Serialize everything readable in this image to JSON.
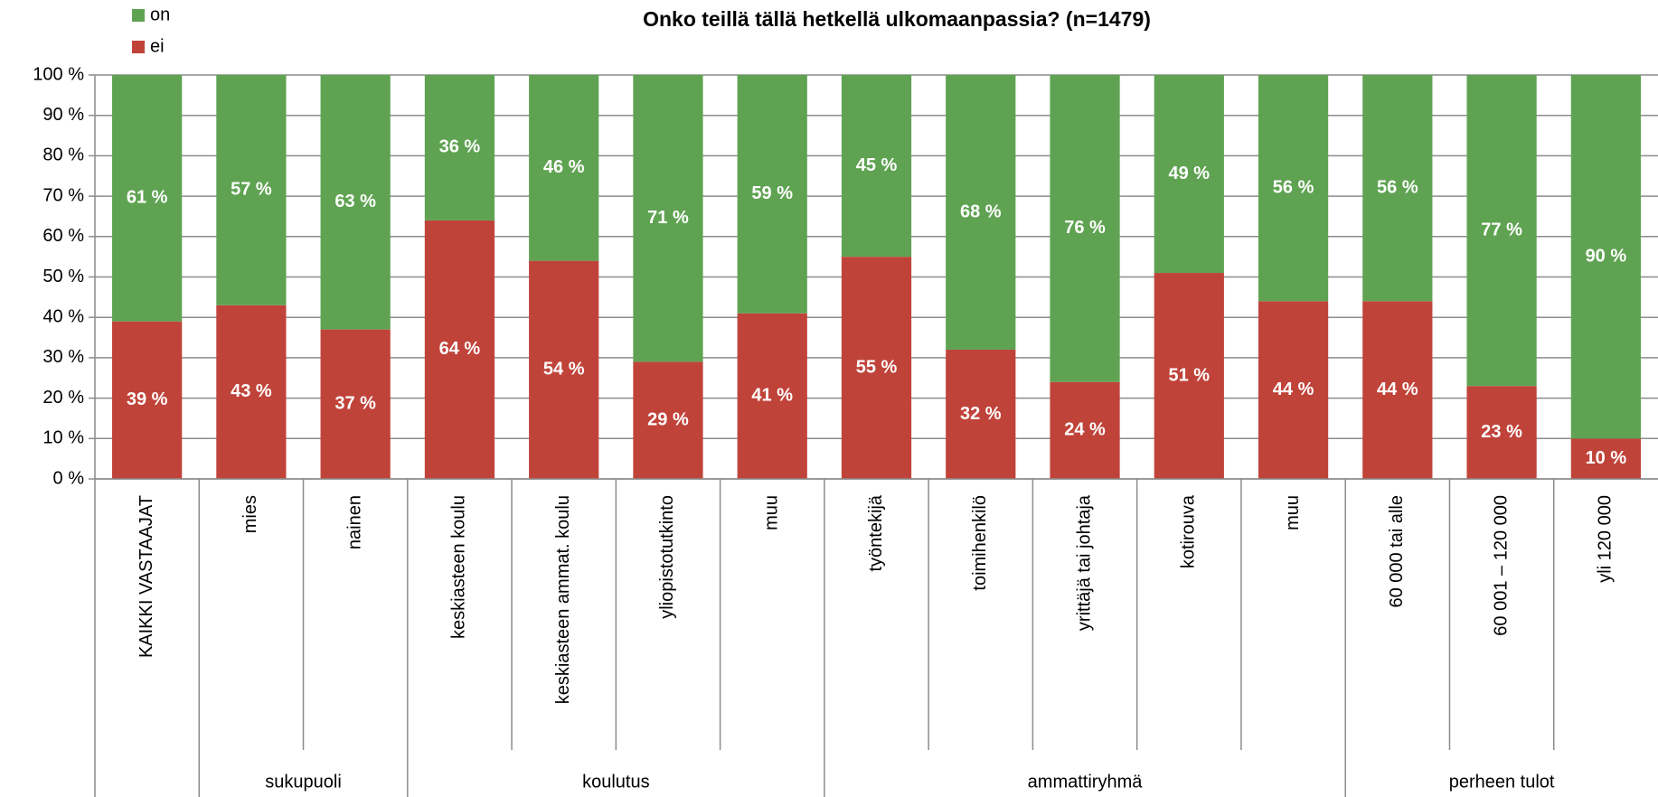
{
  "chart_data": {
    "type": "stacked_bar",
    "title": "Onko teillä tällä hetkellä ulkomaanpassia? (n=1479)",
    "categories": [
      "KAIKKI VASTAAJAT",
      "mies",
      "nainen",
      "keskiasteen koulu",
      "keskiasteen ammat. koulu",
      "yliopistotutkinto",
      "muu",
      "työntekijä",
      "toimihenkilö",
      "yrittäjä tai johtaja",
      "kotirouva",
      "muu",
      "60 000 tai alle",
      "60 001 – 120 000",
      "yli 120 000"
    ],
    "groups": [
      null,
      "sukupuoli",
      "sukupuoli",
      "koulutus",
      "koulutus",
      "koulutus",
      "koulutus",
      "ammattiryhmä",
      "ammattiryhmä",
      "ammattiryhmä",
      "ammattiryhmä",
      "ammattiryhmä",
      "perheen tulot",
      "perheen tulot",
      "perheen tulot"
    ],
    "series": [
      {
        "name": "ei",
        "color": "#c0433a",
        "values": [
          39,
          43,
          37,
          64,
          54,
          29,
          41,
          55,
          32,
          24,
          51,
          44,
          44,
          23,
          10
        ],
        "value_labels": [
          "39 %",
          "43 %",
          "37 %",
          "64 %",
          "54 %",
          "29 %",
          "41 %",
          "55 %",
          "32 %",
          "24 %",
          "51 %",
          "44 %",
          "44 %",
          "23 %",
          "10 %"
        ]
      },
      {
        "name": "on",
        "color": "#5fa352",
        "values": [
          61,
          57,
          63,
          36,
          46,
          71,
          59,
          45,
          68,
          76,
          49,
          56,
          56,
          77,
          90
        ],
        "value_labels": [
          "61 %",
          "57 %",
          "63 %",
          "36 %",
          "46 %",
          "71 %",
          "59 %",
          "45 %",
          "68 %",
          "76 %",
          "49 %",
          "56 %",
          "56 %",
          "77 %",
          "90 %"
        ]
      }
    ],
    "ylim": [
      0,
      100
    ],
    "yticks": [
      {
        "value": 0,
        "label": "0 %"
      },
      {
        "value": 10,
        "label": "10 %"
      },
      {
        "value": 20,
        "label": "20 %"
      },
      {
        "value": 30,
        "label": "30 %"
      },
      {
        "value": 40,
        "label": "40 %"
      },
      {
        "value": 50,
        "label": "50 %"
      },
      {
        "value": 60,
        "label": "60 %"
      },
      {
        "value": 70,
        "label": "70 %"
      },
      {
        "value": 80,
        "label": "80 %"
      },
      {
        "value": 90,
        "label": "90 %"
      },
      {
        "value": 100,
        "label": "100 %"
      }
    ],
    "grid": true,
    "legend": "top-left"
  }
}
